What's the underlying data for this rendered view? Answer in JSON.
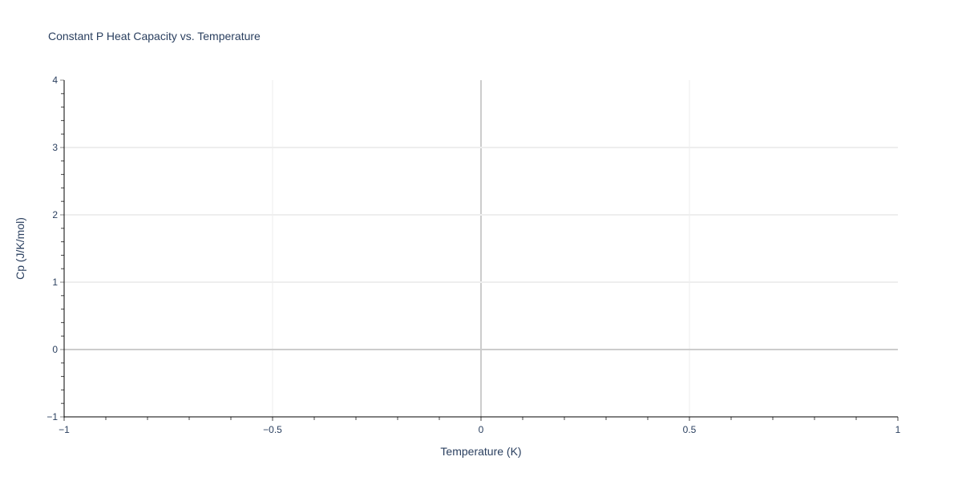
{
  "chart_data": {
    "type": "scatter",
    "title": "Constant P Heat Capacity vs. Temperature",
    "xlabel": "Temperature (K)",
    "ylabel": "Cp (J/K/mol)",
    "xlim": [
      -1,
      1
    ],
    "ylim": [
      -1,
      4
    ],
    "x_ticks": [
      -1,
      -0.5,
      0,
      0.5,
      1
    ],
    "x_tick_labels": [
      "−1",
      "−0.5",
      "0",
      "0.5",
      "1"
    ],
    "y_ticks": [
      -1,
      0,
      1,
      2,
      3,
      4
    ],
    "y_tick_labels": [
      "−1",
      "0",
      "1",
      "2",
      "3",
      "4"
    ],
    "grid": true,
    "series": []
  },
  "colors": {
    "text": "#2a3f5f",
    "grid": "#eeeeee",
    "zeroline": "#cccccc",
    "axis": "#000000"
  }
}
